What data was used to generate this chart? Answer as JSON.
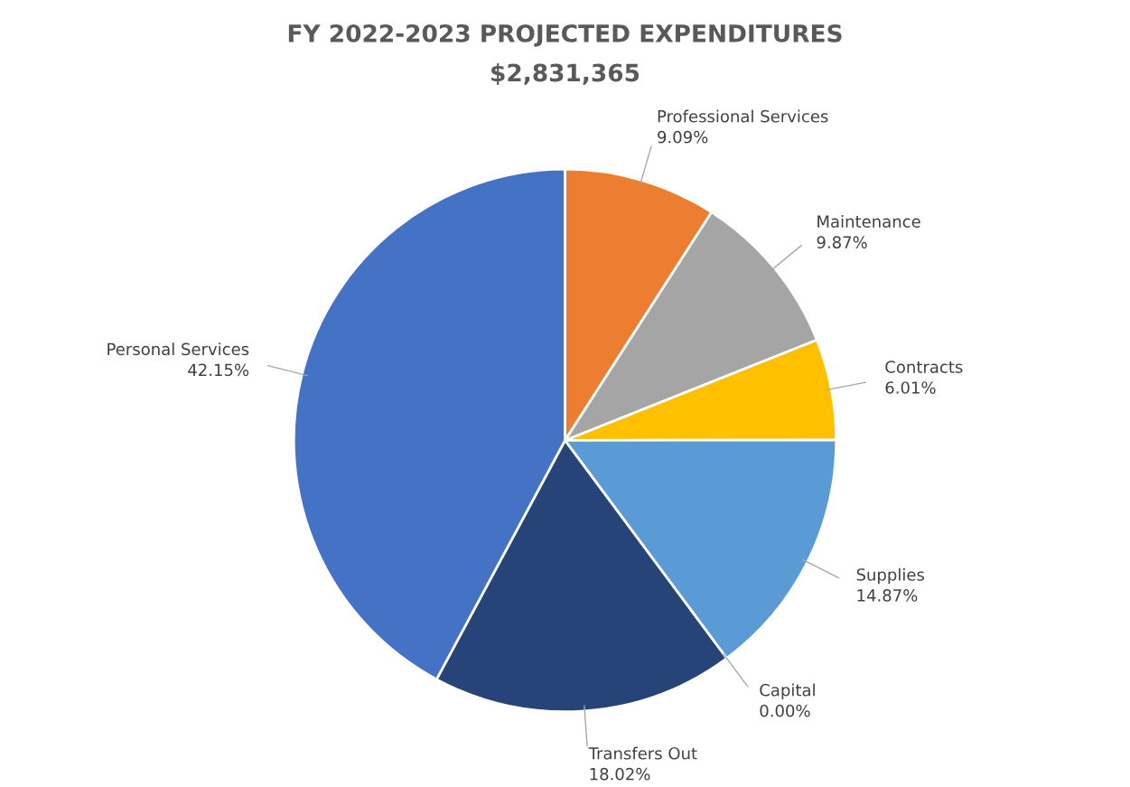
{
  "chart_data": {
    "type": "pie",
    "title": "FY 2022-2023 PROJECTED EXPENDITURES",
    "subtitle": "$2,831,365",
    "categories": [
      "Professional Services",
      "Maintenance",
      "Contracts",
      "Supplies",
      "Capital",
      "Transfers Out",
      "Personal Services"
    ],
    "values": [
      9.09,
      9.87,
      6.01,
      14.87,
      0.0,
      18.02,
      42.15
    ],
    "value_labels": [
      "9.09%",
      "9.87%",
      "6.01%",
      "14.87%",
      "0.00%",
      "18.02%",
      "42.15%"
    ],
    "colors": [
      "#ed7d31",
      "#a5a5a5",
      "#ffc000",
      "#5b9bd5",
      "#70ad47",
      "#264478",
      "#4472c4"
    ],
    "legend": false
  }
}
